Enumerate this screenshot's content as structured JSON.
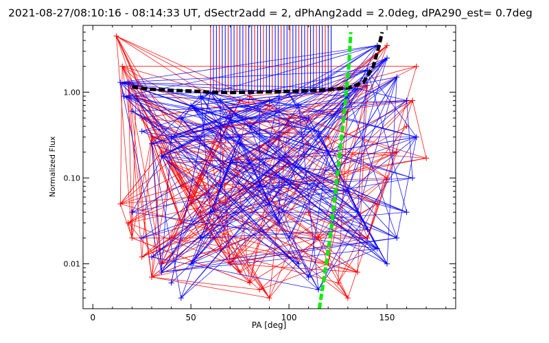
{
  "chart_data": {
    "type": "line",
    "title": "2021-08-27/08:10:16 - 08:14:33 UT, dSectr2add = 2, dPhAng2add = 2.0deg, dPA290_est=  0.7deg",
    "xlabel": "PA [deg]",
    "ylabel": "Normalized Flux",
    "xlim": [
      -5,
      185
    ],
    "ylim": [
      0.003,
      6
    ],
    "yscale": "log",
    "x_ticks": [
      0,
      50,
      100,
      150
    ],
    "x_tick_labels": [
      "0",
      "50",
      "100",
      "150"
    ],
    "y_ticks": [
      0.01,
      0.1,
      1.0
    ],
    "y_tick_labels": [
      "0.01",
      "0.10",
      "1.00"
    ],
    "grid": false,
    "legend": "none",
    "colors": {
      "red_series": "#ff0000",
      "blue_series": "#0000ff",
      "fit_curve": "#000000",
      "pa_line": "#00ee00"
    },
    "series": [
      {
        "style": "thick dashed black",
        "x": [
          20,
          30,
          40,
          50,
          60,
          70,
          80,
          90,
          100,
          110,
          120,
          130,
          138,
          143,
          146,
          147.5
        ],
        "y": [
          1.15,
          1.08,
          1.05,
          1.03,
          1.0,
          0.99,
          1.0,
          1.01,
          1.02,
          1.04,
          1.07,
          1.12,
          1.3,
          2.0,
          3.5,
          5.0
        ]
      },
      {
        "style": "thick dashed green",
        "x": [
          115.5,
          117.5,
          119.5,
          121.5,
          123,
          124.5,
          126,
          127.5,
          129,
          130.5,
          131.5
        ],
        "y": [
          0.003,
          0.006,
          0.012,
          0.025,
          0.05,
          0.1,
          0.2,
          0.4,
          0.9,
          2.0,
          5.0
        ]
      }
    ],
    "vertical_lines_x": [
      60,
      61.5,
      63,
      64.5,
      66,
      67.5,
      69,
      70.5,
      72,
      73.5,
      75,
      76.5,
      78,
      79.5,
      81,
      82.5,
      84,
      85.5,
      87,
      88.5,
      90,
      91.5,
      93,
      94.5,
      96,
      97.5,
      99,
      100.5,
      102,
      103.5,
      105,
      106.5,
      108,
      109.5,
      111,
      112.5,
      114,
      115.5,
      117,
      118.5,
      120,
      121.5
    ],
    "red_points": [
      [
        12,
        4.5
      ],
      [
        15,
        2.0
      ],
      [
        18,
        1.3
      ],
      [
        22,
        0.9
      ],
      [
        25,
        0.5
      ],
      [
        30,
        0.3
      ],
      [
        35,
        0.2
      ],
      [
        40,
        0.15
      ],
      [
        45,
        0.08
      ],
      [
        50,
        0.06
      ],
      [
        55,
        0.04
      ],
      [
        60,
        0.02
      ],
      [
        65,
        0.015
      ],
      [
        70,
        0.01
      ],
      [
        75,
        0.008
      ],
      [
        80,
        0.006
      ],
      [
        85,
        0.005
      ],
      [
        90,
        0.004
      ],
      [
        14,
        0.05
      ],
      [
        18,
        0.03
      ],
      [
        20,
        0.02
      ],
      [
        25,
        0.012
      ],
      [
        30,
        0.007
      ],
      [
        35,
        0.01
      ],
      [
        40,
        0.02
      ],
      [
        45,
        0.03
      ],
      [
        50,
        0.05
      ],
      [
        55,
        0.1
      ],
      [
        60,
        0.2
      ],
      [
        65,
        0.4
      ],
      [
        70,
        0.6
      ],
      [
        75,
        0.8
      ],
      [
        80,
        0.9
      ],
      [
        95,
        0.3
      ],
      [
        100,
        0.15
      ],
      [
        105,
        0.08
      ],
      [
        110,
        0.04
      ],
      [
        115,
        0.02
      ],
      [
        120,
        0.01
      ],
      [
        125,
        0.006
      ],
      [
        130,
        0.004
      ],
      [
        135,
        0.008
      ],
      [
        140,
        0.02
      ],
      [
        145,
        0.05
      ],
      [
        150,
        0.1
      ],
      [
        155,
        0.2
      ],
      [
        160,
        0.4
      ],
      [
        163,
        0.8
      ],
      [
        165,
        2.0
      ],
      [
        150,
        3.5
      ],
      [
        140,
        1.2
      ],
      [
        130,
        0.6
      ],
      [
        120,
        0.3
      ],
      [
        110,
        0.25
      ],
      [
        100,
        0.5
      ],
      [
        90,
        0.7
      ],
      [
        170,
        0.17
      ]
    ],
    "blue_points": [
      [
        14,
        1.3
      ],
      [
        16,
        0.9
      ],
      [
        20,
        0.6
      ],
      [
        25,
        0.35
      ],
      [
        30,
        0.25
      ],
      [
        35,
        0.18
      ],
      [
        40,
        0.3
      ],
      [
        45,
        0.5
      ],
      [
        50,
        0.7
      ],
      [
        55,
        0.9
      ],
      [
        60,
        1.0
      ],
      [
        65,
        0.8
      ],
      [
        70,
        0.5
      ],
      [
        75,
        0.3
      ],
      [
        80,
        0.15
      ],
      [
        85,
        0.08
      ],
      [
        90,
        0.05
      ],
      [
        95,
        0.03
      ],
      [
        100,
        0.02
      ],
      [
        105,
        0.01
      ],
      [
        110,
        0.007
      ],
      [
        115,
        0.005
      ],
      [
        20,
        0.04
      ],
      [
        25,
        0.02
      ],
      [
        30,
        0.012
      ],
      [
        35,
        0.008
      ],
      [
        40,
        0.006
      ],
      [
        45,
        0.004
      ],
      [
        50,
        0.01
      ],
      [
        55,
        0.02
      ],
      [
        60,
        0.04
      ],
      [
        65,
        0.08
      ],
      [
        70,
        0.15
      ],
      [
        75,
        0.25
      ],
      [
        80,
        0.4
      ],
      [
        85,
        0.6
      ],
      [
        90,
        0.8
      ],
      [
        95,
        0.9
      ],
      [
        100,
        0.95
      ],
      [
        105,
        0.7
      ],
      [
        110,
        0.5
      ],
      [
        115,
        0.35
      ],
      [
        120,
        0.2
      ],
      [
        125,
        0.12
      ],
      [
        130,
        0.07
      ],
      [
        135,
        0.04
      ],
      [
        140,
        0.025
      ],
      [
        145,
        0.015
      ],
      [
        150,
        0.01
      ],
      [
        155,
        0.02
      ],
      [
        160,
        0.04
      ],
      [
        163,
        0.1
      ],
      [
        165,
        0.3
      ],
      [
        160,
        0.8
      ],
      [
        155,
        1.5
      ],
      [
        150,
        2.5
      ],
      [
        145,
        3.5
      ],
      [
        140,
        1.8
      ],
      [
        135,
        1.1
      ],
      [
        130,
        0.9
      ]
    ]
  }
}
